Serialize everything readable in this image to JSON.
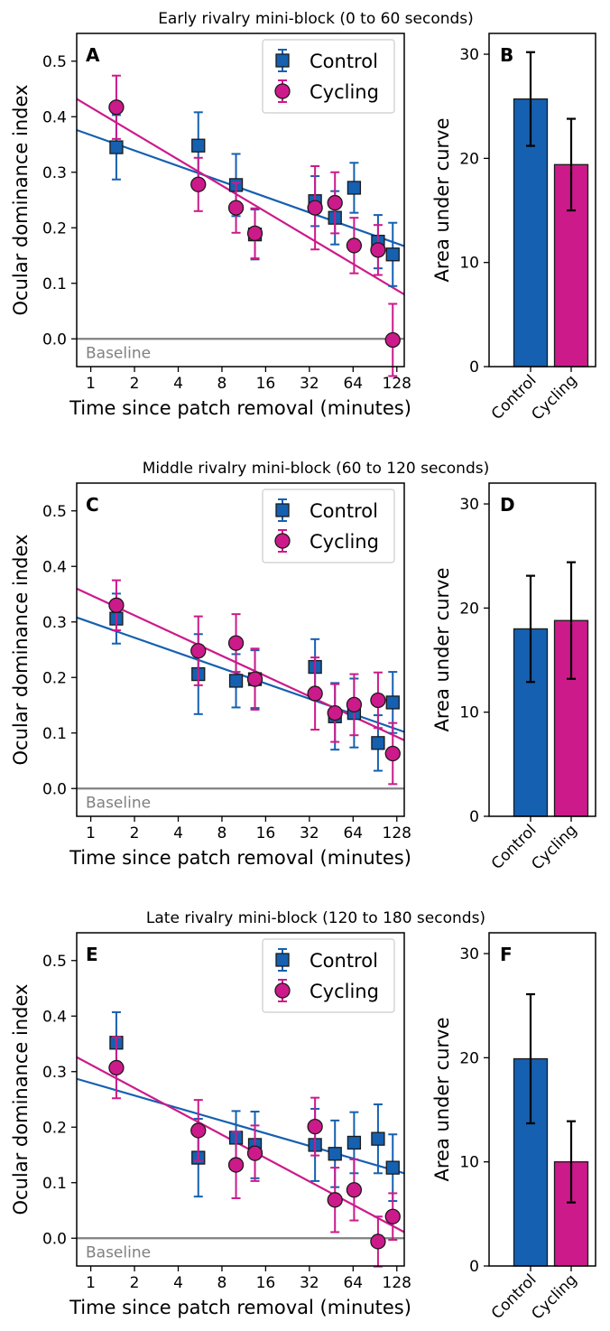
{
  "colors": {
    "control": "#1560b0",
    "cycling": "#cc1a8a",
    "baseline": "#808080",
    "axis": "#000000"
  },
  "legend_labels": [
    "Control",
    "Cycling"
  ],
  "baseline_label": "Baseline",
  "chart_data": [
    {
      "panel": "A",
      "type": "scatter",
      "title": "Early rivalry mini-block (0 to 60 seconds)",
      "xlabel": "Time since patch removal (minutes)",
      "ylabel": "Ocular dominance index",
      "xscale": "log2",
      "xlim": [
        0.8,
        144
      ],
      "ylim": [
        -0.05,
        0.55
      ],
      "xticks": [
        1,
        2,
        4,
        8,
        16,
        32,
        64,
        128
      ],
      "xtick_labels": [
        "1",
        "2",
        "4",
        "8",
        "16",
        "32",
        "64",
        "128"
      ],
      "yticks": [
        0.0,
        0.1,
        0.2,
        0.3,
        0.4,
        0.5
      ],
      "ytick_labels": [
        "0.0",
        "0.1",
        "0.2",
        "0.3",
        "0.4",
        "0.5"
      ],
      "legend": "top-right",
      "baseline": 0,
      "series": [
        {
          "name": "Control",
          "marker": "square",
          "x": [
            1.5,
            5.5,
            10,
            13.5,
            35,
            48,
            65,
            95,
            120
          ],
          "y": [
            0.345,
            0.348,
            0.277,
            0.188,
            0.248,
            0.218,
            0.272,
            0.175,
            0.152
          ],
          "err": [
            0.058,
            0.06,
            0.056,
            0.045,
            0.045,
            0.048,
            0.045,
            0.048,
            0.057
          ],
          "fit": [
            0.376,
            0.167
          ]
        },
        {
          "name": "Cycling",
          "marker": "circle",
          "x": [
            1.5,
            5.5,
            10,
            13.5,
            35,
            48,
            65,
            95,
            120
          ],
          "y": [
            0.417,
            0.278,
            0.236,
            0.19,
            0.236,
            0.245,
            0.168,
            0.16,
            -0.002
          ],
          "err": [
            0.057,
            0.048,
            0.045,
            0.045,
            0.075,
            0.055,
            0.05,
            0.045,
            0.065
          ],
          "fit": [
            0.432,
            0.08
          ]
        }
      ]
    },
    {
      "panel": "B",
      "type": "bar",
      "categories": [
        "Control",
        "Cycling"
      ],
      "ylabel": "Area under curve",
      "ylim": [
        0,
        32
      ],
      "yticks": [
        0,
        10,
        20,
        30
      ],
      "ytick_labels": [
        "0",
        "10",
        "20",
        "30"
      ],
      "values": [
        25.7,
        19.4
      ],
      "err": [
        4.5,
        4.4
      ]
    },
    {
      "panel": "C",
      "type": "scatter",
      "title": "Middle rivalry mini-block (60 to 120 seconds)",
      "xlabel": "Time since patch removal (minutes)",
      "ylabel": "Ocular dominance index",
      "xscale": "log2",
      "xlim": [
        0.8,
        144
      ],
      "ylim": [
        -0.05,
        0.55
      ],
      "xticks": [
        1,
        2,
        4,
        8,
        16,
        32,
        64,
        128
      ],
      "xtick_labels": [
        "1",
        "2",
        "4",
        "8",
        "16",
        "32",
        "64",
        "128"
      ],
      "yticks": [
        0.0,
        0.1,
        0.2,
        0.3,
        0.4,
        0.5
      ],
      "ytick_labels": [
        "0.0",
        "0.1",
        "0.2",
        "0.3",
        "0.4",
        "0.5"
      ],
      "legend": "top-right",
      "baseline": 0,
      "series": [
        {
          "name": "Control",
          "marker": "square",
          "x": [
            1.5,
            5.5,
            10,
            13.5,
            35,
            48,
            65,
            95,
            120
          ],
          "y": [
            0.306,
            0.206,
            0.194,
            0.197,
            0.219,
            0.13,
            0.136,
            0.082,
            0.155
          ],
          "err": [
            0.045,
            0.072,
            0.048,
            0.052,
            0.05,
            0.06,
            0.062,
            0.05,
            0.055
          ],
          "fit": [
            0.308,
            0.102
          ]
        },
        {
          "name": "Cycling",
          "marker": "circle",
          "x": [
            1.5,
            5.5,
            10,
            13.5,
            35,
            48,
            65,
            95,
            120
          ],
          "y": [
            0.33,
            0.248,
            0.262,
            0.197,
            0.171,
            0.136,
            0.151,
            0.159,
            0.063
          ],
          "err": [
            0.045,
            0.062,
            0.052,
            0.055,
            0.065,
            0.052,
            0.055,
            0.05,
            0.055
          ],
          "fit": [
            0.36,
            0.087
          ]
        }
      ]
    },
    {
      "panel": "D",
      "type": "bar",
      "categories": [
        "Control",
        "Cycling"
      ],
      "ylabel": "Area under curve",
      "ylim": [
        0,
        32
      ],
      "yticks": [
        0,
        10,
        20,
        30
      ],
      "ytick_labels": [
        "0",
        "10",
        "20",
        "30"
      ],
      "values": [
        18.0,
        18.8
      ],
      "err": [
        5.1,
        5.6
      ]
    },
    {
      "panel": "E",
      "type": "scatter",
      "title": "Late rivalry mini-block (120 to 180 seconds)",
      "xlabel": "Time since patch removal (minutes)",
      "ylabel": "Ocular dominance index",
      "xscale": "log2",
      "xlim": [
        0.8,
        144
      ],
      "ylim": [
        -0.05,
        0.55
      ],
      "xticks": [
        1,
        2,
        4,
        8,
        16,
        32,
        64,
        128
      ],
      "xtick_labels": [
        "1",
        "2",
        "4",
        "8",
        "16",
        "32",
        "64",
        "128"
      ],
      "yticks": [
        0.0,
        0.1,
        0.2,
        0.3,
        0.4,
        0.5
      ],
      "ytick_labels": [
        "0.0",
        "0.1",
        "0.2",
        "0.3",
        "0.4",
        "0.5"
      ],
      "legend": "top-right",
      "baseline": 0,
      "series": [
        {
          "name": "Control",
          "marker": "square",
          "x": [
            1.5,
            5.5,
            10,
            13.5,
            35,
            48,
            65,
            95,
            120
          ],
          "y": [
            0.352,
            0.145,
            0.181,
            0.168,
            0.168,
            0.152,
            0.172,
            0.179,
            0.127
          ],
          "err": [
            0.055,
            0.07,
            0.048,
            0.06,
            0.065,
            0.06,
            0.055,
            0.062,
            0.06
          ],
          "fit": [
            0.287,
            0.117
          ]
        },
        {
          "name": "Cycling",
          "marker": "circle",
          "x": [
            1.5,
            5.5,
            10,
            13.5,
            35,
            48,
            65,
            95,
            120
          ],
          "y": [
            0.307,
            0.194,
            0.132,
            0.153,
            0.201,
            0.069,
            0.087,
            -0.006,
            0.039
          ],
          "err": [
            0.055,
            0.055,
            0.06,
            0.05,
            0.052,
            0.058,
            0.055,
            0.045,
            0.042
          ],
          "fit": [
            0.326,
            0.011
          ]
        }
      ]
    },
    {
      "panel": "F",
      "type": "bar",
      "categories": [
        "Control",
        "Cycling"
      ],
      "ylabel": "Area under curve",
      "ylim": [
        0,
        32
      ],
      "yticks": [
        0,
        10,
        20,
        30
      ],
      "ytick_labels": [
        "0",
        "10",
        "20",
        "30"
      ],
      "values": [
        19.9,
        10.0
      ],
      "err": [
        6.2,
        3.9
      ]
    }
  ]
}
